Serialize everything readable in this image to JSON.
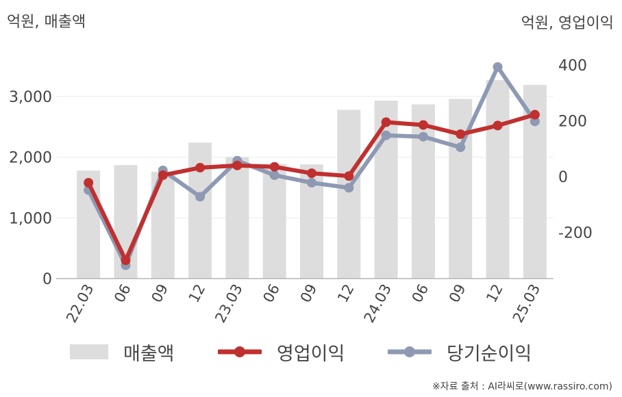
{
  "chart_data": {
    "type": "bar+line",
    "categories": [
      "22.03",
      "06",
      "09",
      "12",
      "23.03",
      "06",
      "09",
      "12",
      "24.03",
      "06",
      "09",
      "12",
      "25.03"
    ],
    "left_axis": {
      "unit_label": "억원, 매출액",
      "ylim": [
        0,
        3700
      ],
      "ticks": [
        0,
        1000,
        2000,
        3000
      ],
      "tick_labels": [
        "0",
        "1,000",
        "2,000",
        "3,000"
      ]
    },
    "right_axis": {
      "unit_label": "억원, 영업이익",
      "ylim": [
        -370,
        450
      ],
      "ticks": [
        -200,
        0,
        200,
        400
      ],
      "tick_labels": [
        "-200",
        "0",
        "200",
        "400"
      ]
    },
    "series": [
      {
        "name": "매출액",
        "type": "bar",
        "axis": "left",
        "color": "#dddddd",
        "values": [
          1780,
          1870,
          1760,
          2240,
          2000,
          1890,
          1880,
          2780,
          2930,
          2870,
          2960,
          3270,
          3190
        ]
      },
      {
        "name": "영업이익",
        "type": "line",
        "axis": "right",
        "color": "#c0302f",
        "values": [
          -22,
          -300,
          5,
          32,
          40,
          35,
          12,
          2,
          195,
          185,
          152,
          183,
          222
        ]
      },
      {
        "name": "당기순이익",
        "type": "line",
        "axis": "right",
        "color": "#8e99b3",
        "values": [
          -48,
          -318,
          22,
          -72,
          57,
          5,
          -22,
          -40,
          148,
          143,
          105,
          393,
          198
        ]
      }
    ],
    "grid": true,
    "legend_position": "bottom"
  },
  "source_text": "※자료 출처 : AI라씨로(www.rassiro.com)"
}
